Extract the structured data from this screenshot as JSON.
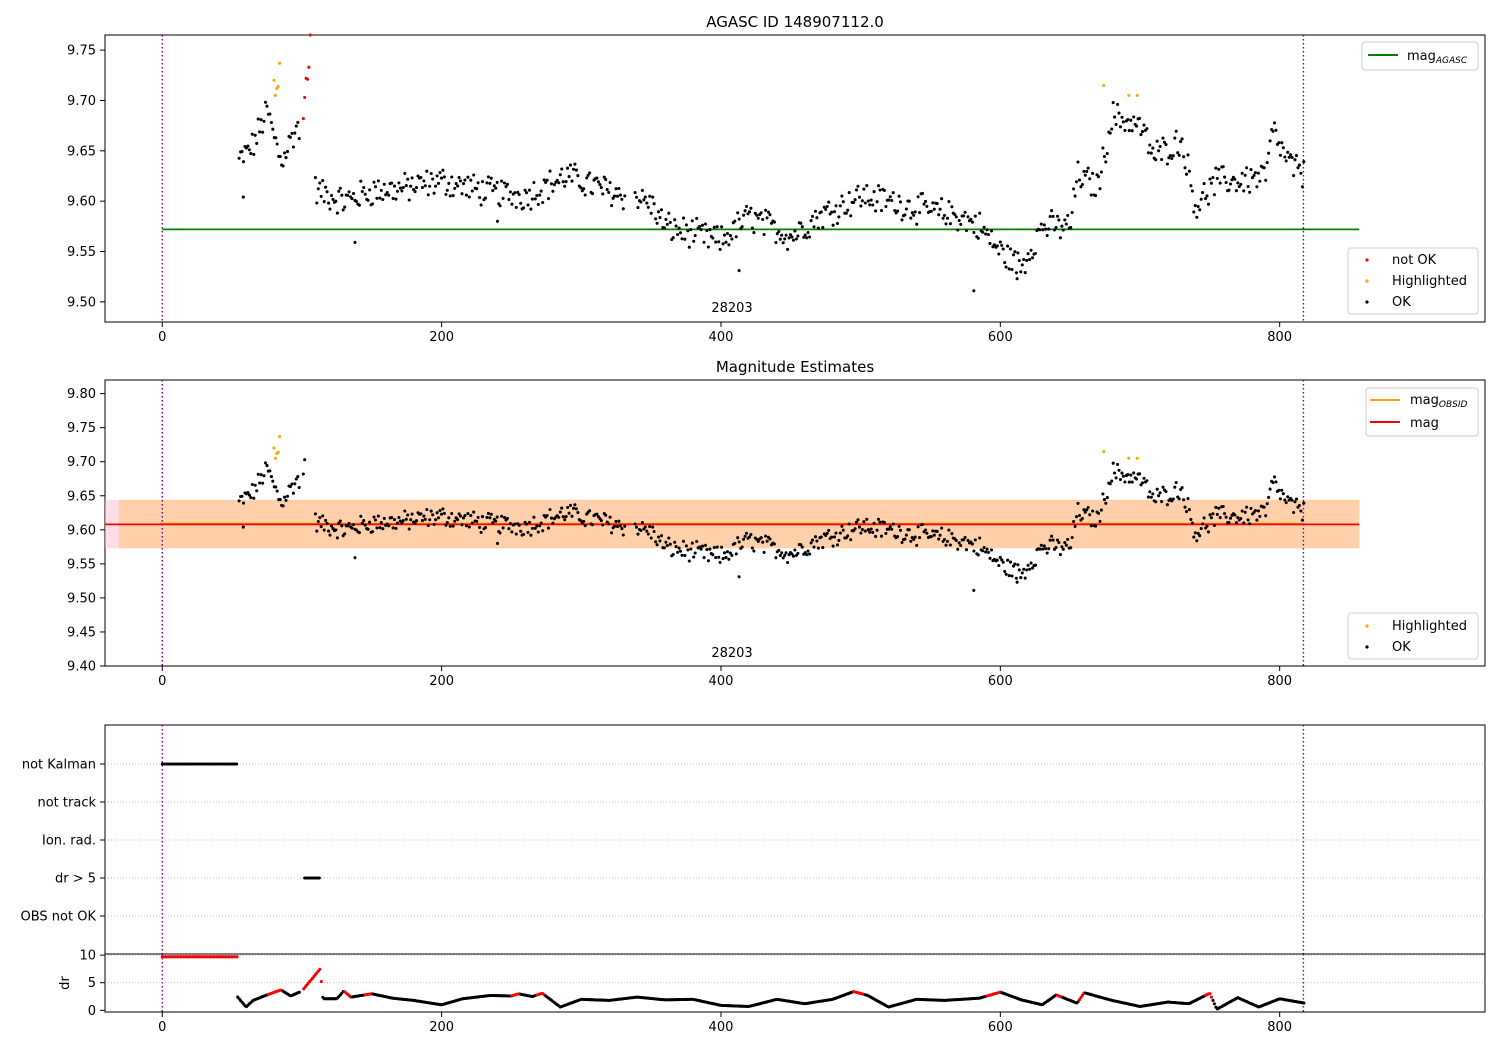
{
  "chart_data": [
    {
      "type": "scatter",
      "title": "AGASC ID 148907112.0",
      "xlim": [
        -41,
        947
      ],
      "ylim": [
        9.48,
        9.765
      ],
      "x_ticks": [
        0,
        200,
        400,
        600,
        800
      ],
      "y_ticks": [
        9.5,
        9.55,
        9.6,
        9.65,
        9.7,
        9.75
      ],
      "obsid_label": "28203",
      "obsid_boundaries": [
        0,
        817
      ],
      "hlines": [
        {
          "name": "mag_AGASC",
          "value": 9.572,
          "color": "#008000"
        }
      ],
      "legend_top": {
        "placement": "top-right",
        "entries": [
          {
            "main": "mag",
            "sub": "AGASC",
            "color": "#008000"
          }
        ]
      },
      "legend_bottom": {
        "placement": "lower-right",
        "entries": [
          {
            "label": "not OK",
            "color": "#ff0000"
          },
          {
            "label": "Highlighted",
            "color": "#ffa500"
          },
          {
            "label": "OK",
            "color": "#000000"
          }
        ]
      },
      "series": [
        {
          "name": "OK",
          "color": "#000000",
          "noise": 0.013,
          "segments": [
            [
              55,
              9.64
            ],
            [
              65,
              9.655
            ],
            [
              75,
              9.69
            ],
            [
              85,
              9.64
            ],
            [
              97,
              9.675
            ],
            [
              110,
              9.61
            ],
            [
              130,
              9.6
            ],
            [
              150,
              9.61
            ],
            [
              170,
              9.612
            ],
            [
              200,
              9.62
            ],
            [
              230,
              9.61
            ],
            [
              260,
              9.605
            ],
            [
              290,
              9.625
            ],
            [
              320,
              9.61
            ],
            [
              348,
              9.6
            ],
            [
              360,
              9.575
            ],
            [
              400,
              9.56
            ],
            [
              420,
              9.585
            ],
            [
              450,
              9.565
            ],
            [
              470,
              9.585
            ],
            [
              500,
              9.605
            ],
            [
              520,
              9.6
            ],
            [
              550,
              9.59
            ],
            [
              570,
              9.585
            ],
            [
              585,
              9.575
            ],
            [
              600,
              9.55
            ],
            [
              615,
              9.535
            ],
            [
              630,
              9.575
            ],
            [
              650,
              9.575
            ],
            [
              655,
              9.625
            ],
            [
              670,
              9.615
            ],
            [
              680,
              9.685
            ],
            [
              700,
              9.675
            ],
            [
              710,
              9.645
            ],
            [
              730,
              9.66
            ],
            [
              740,
              9.595
            ],
            [
              755,
              9.62
            ],
            [
              770,
              9.62
            ],
            [
              790,
              9.625
            ],
            [
              795,
              9.67
            ],
            [
              805,
              9.64
            ],
            [
              818,
              9.625
            ]
          ]
        },
        {
          "name": "Highlighted",
          "color": "#ffa500",
          "points": [
            [
              80,
              9.72
            ],
            [
              81,
              9.705
            ],
            [
              82,
              9.712
            ],
            [
              83,
              9.714
            ],
            [
              84,
              9.737
            ],
            [
              674,
              9.715
            ],
            [
              692,
              9.705
            ],
            [
              698,
              9.705
            ]
          ]
        },
        {
          "name": "not OK",
          "color": "#ff0000",
          "points": [
            [
              101,
              9.682
            ],
            [
              102,
              9.703
            ],
            [
              103,
              9.722
            ],
            [
              104,
              9.721
            ],
            [
              105,
              9.733
            ],
            [
              106,
              9.765
            ]
          ]
        }
      ]
    },
    {
      "type": "scatter",
      "title": "Magnitude Estimates",
      "xlim": [
        -41,
        947
      ],
      "ylim": [
        9.4,
        9.82
      ],
      "x_ticks": [
        0,
        200,
        400,
        600,
        800
      ],
      "y_ticks": [
        9.4,
        9.45,
        9.5,
        9.55,
        9.6,
        9.65,
        9.7,
        9.75,
        9.8
      ],
      "obsid_label": "28203",
      "obsid_boundaries": [
        0,
        817
      ],
      "hlines": [
        {
          "name": "mag_OBSID",
          "value": 9.609,
          "color": "#ffa500"
        },
        {
          "name": "mag",
          "value": 9.608,
          "color": "#ff0000"
        }
      ],
      "bands": [
        {
          "name": "mag_OBSID band",
          "range": [
            9.573,
            9.644
          ],
          "color": "#ffa500"
        },
        {
          "name": "mag band",
          "range": [
            9.573,
            9.644
          ],
          "color": "#ff0000"
        }
      ],
      "legend_top": {
        "placement": "top-right",
        "entries": [
          {
            "main": "mag",
            "sub": "OBSID",
            "color": "#ffa500"
          },
          {
            "main": "mag",
            "sub": "",
            "color": "#ff0000"
          }
        ]
      },
      "legend_bottom": {
        "placement": "lower-right",
        "entries": [
          {
            "label": "Highlighted",
            "color": "#ffa500"
          },
          {
            "label": "OK",
            "color": "#000000"
          }
        ]
      },
      "series_note": "same OK and Highlighted points as the first panel"
    },
    {
      "type": "scatter",
      "title": "",
      "categories": [
        "not Kalman",
        "not track",
        "Ion. rad.",
        "dr > 5",
        "OBS not OK"
      ],
      "flag_points": [
        {
          "category": "not Kalman",
          "x_range": [
            0,
            54
          ],
          "color": "#000000"
        },
        {
          "category": "dr > 5",
          "x_range": [
            102,
            113
          ],
          "color": "#000000"
        }
      ],
      "xlim": [
        -41,
        947
      ],
      "obsid_boundaries": [
        0,
        817
      ]
    },
    {
      "type": "scatter",
      "title": "",
      "ylabel": "dr",
      "xlim": [
        -41,
        947
      ],
      "ylim": [
        -0.3,
        10.2
      ],
      "x_ticks": [
        0,
        200,
        400,
        600,
        800
      ],
      "y_ticks": [
        0,
        5,
        10
      ],
      "obsid_boundaries": [
        0,
        817
      ],
      "series": [
        {
          "name": "dr > 5 (red)",
          "color": "#ff0000",
          "segments": [
            [
              0,
              9.7
            ],
            [
              54,
              9.7
            ]
          ]
        },
        {
          "name": "dr ramp",
          "color": "#000000",
          "segments": [
            [
              54,
              2.4
            ],
            [
              60,
              0.6
            ],
            [
              65,
              1.8
            ],
            [
              75,
              2.8
            ],
            [
              85,
              3.7
            ],
            [
              92,
              2.6
            ],
            [
              100,
              3.5
            ],
            [
              113,
              7.5
            ],
            [
              115,
              2.1
            ],
            [
              125,
              2.1
            ],
            [
              130,
              3.5
            ],
            [
              135,
              2.4
            ],
            [
              150,
              3.0
            ],
            [
              165,
              2.2
            ],
            [
              180,
              1.8
            ],
            [
              200,
              1.0
            ],
            [
              215,
              2.1
            ],
            [
              235,
              2.7
            ],
            [
              250,
              2.6
            ],
            [
              255,
              3.0
            ],
            [
              265,
              2.5
            ],
            [
              272,
              3.1
            ],
            [
              285,
              0.6
            ],
            [
              300,
              2.0
            ],
            [
              320,
              1.8
            ],
            [
              340,
              2.4
            ],
            [
              360,
              1.9
            ],
            [
              380,
              2.0
            ],
            [
              400,
              0.9
            ],
            [
              420,
              0.7
            ],
            [
              440,
              2.0
            ],
            [
              460,
              1.2
            ],
            [
              480,
              2.0
            ],
            [
              495,
              3.4
            ],
            [
              505,
              2.7
            ],
            [
              520,
              0.6
            ],
            [
              540,
              2.0
            ],
            [
              560,
              1.8
            ],
            [
              585,
              2.2
            ],
            [
              600,
              3.3
            ],
            [
              615,
              1.9
            ],
            [
              630,
              1.0
            ],
            [
              640,
              2.8
            ],
            [
              655,
              1.3
            ],
            [
              660,
              3.2
            ],
            [
              680,
              1.8
            ],
            [
              700,
              0.7
            ],
            [
              720,
              1.5
            ],
            [
              735,
              1.2
            ],
            [
              750,
              3.1
            ],
            [
              755,
              0.2
            ],
            [
              770,
              2.3
            ],
            [
              785,
              0.6
            ],
            [
              800,
              2.1
            ],
            [
              818,
              1.3
            ]
          ]
        },
        {
          "name": "dr red markers",
          "color": "#ff0000",
          "ranges": [
            [
              75,
              86
            ],
            [
              100,
              114
            ],
            [
              130,
              135
            ],
            [
              145,
              150
            ],
            [
              250,
              256
            ],
            [
              268,
              274
            ],
            [
              494,
              503
            ],
            [
              590,
              601
            ],
            [
              640,
              645
            ],
            [
              656,
              660
            ],
            [
              746,
              752
            ]
          ]
        }
      ]
    }
  ]
}
